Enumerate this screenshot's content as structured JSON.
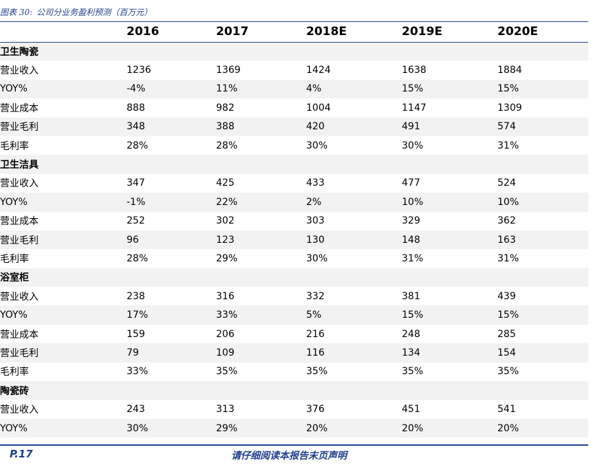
{
  "caption": {
    "label": "图表 30:",
    "title": "公司分业务盈利预测（百万元）"
  },
  "table": {
    "headers": [
      "",
      "2016",
      "2017",
      "2018E",
      "2019E",
      "2020E"
    ],
    "rows": [
      [
        "卫生陶瓷",
        "",
        "",
        "",
        "",
        ""
      ],
      [
        "营业收入",
        "1236",
        "1369",
        "1424",
        "1638",
        "1884"
      ],
      [
        "YOY%",
        "-4%",
        "11%",
        "4%",
        "15%",
        "15%"
      ],
      [
        "营业成本",
        "888",
        "982",
        "1004",
        "1147",
        "1309"
      ],
      [
        "营业毛利",
        "348",
        "388",
        "420",
        "491",
        "574"
      ],
      [
        "毛利率",
        "28%",
        "28%",
        "30%",
        "30%",
        "31%"
      ],
      [
        "卫生洁具",
        "",
        "",
        "",
        "",
        ""
      ],
      [
        "营业收入",
        "347",
        "425",
        "433",
        "477",
        "524"
      ],
      [
        "YOY%",
        "-1%",
        "22%",
        "2%",
        "10%",
        "10%"
      ],
      [
        "营业成本",
        "252",
        "302",
        "303",
        "329",
        "362"
      ],
      [
        "营业毛利",
        "96",
        "123",
        "130",
        "148",
        "163"
      ],
      [
        "毛利率",
        "28%",
        "29%",
        "30%",
        "31%",
        "31%"
      ],
      [
        "浴室柜",
        "",
        "",
        "",
        "",
        ""
      ],
      [
        "营业收入",
        "238",
        "316",
        "332",
        "381",
        "439"
      ],
      [
        "YOY%",
        "17%",
        "33%",
        "5%",
        "15%",
        "15%"
      ],
      [
        "营业成本",
        "159",
        "206",
        "216",
        "248",
        "285"
      ],
      [
        "营业毛利",
        "79",
        "109",
        "116",
        "134",
        "154"
      ],
      [
        "毛利率",
        "33%",
        "35%",
        "35%",
        "35%",
        "35%"
      ],
      [
        "陶瓷砖",
        "",
        "",
        "",
        "",
        ""
      ],
      [
        "营业收入",
        "243",
        "313",
        "376",
        "451",
        "541"
      ],
      [
        "YOY%",
        "30%",
        "29%",
        "20%",
        "20%",
        "20%"
      ]
    ]
  },
  "footer": {
    "page": "P.17",
    "note": "请仔细阅读本报告末页声明"
  },
  "colors": {
    "accent": "#1f3f8f",
    "row_shade": "#f2f2f2"
  }
}
